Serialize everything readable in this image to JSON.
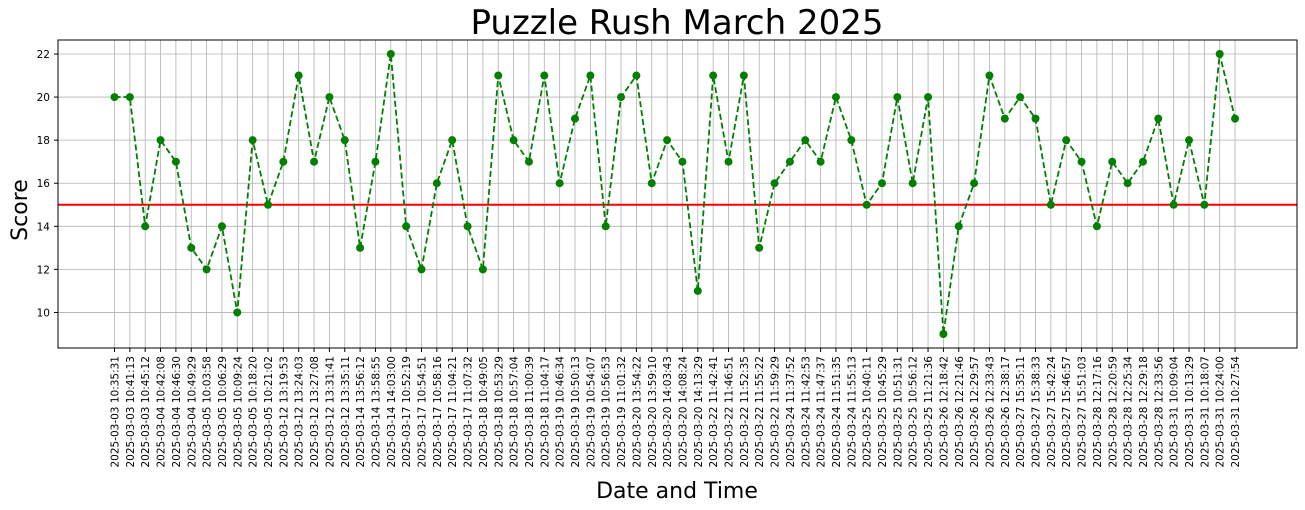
{
  "chart_data": {
    "type": "line",
    "title": "Puzzle Rush March 2025",
    "xlabel": "Date and Time",
    "ylabel": "Score",
    "ylim": [
      8.35,
      22.65
    ],
    "yticks": [
      10,
      12,
      14,
      16,
      18,
      20,
      22
    ],
    "grid": true,
    "reference_line": {
      "y": 15,
      "color": "#ff0000"
    },
    "series_color": "#007f00",
    "categories": [
      "2025-03-03 10:35:31",
      "2025-03-03 10:41:13",
      "2025-03-03 10:45:12",
      "2025-03-04 10:42:08",
      "2025-03-04 10:46:30",
      "2025-03-04 10:49:29",
      "2025-03-05 10:03:58",
      "2025-03-05 10:06:29",
      "2025-03-05 10:09:24",
      "2025-03-05 10:18:20",
      "2025-03-05 10:21:02",
      "2025-03-12 13:19:53",
      "2025-03-12 13:24:03",
      "2025-03-12 13:27:08",
      "2025-03-12 13:31:41",
      "2025-03-12 13:35:11",
      "2025-03-14 13:56:12",
      "2025-03-14 13:58:55",
      "2025-03-14 14:03:00",
      "2025-03-17 10:52:19",
      "2025-03-17 10:54:51",
      "2025-03-17 10:58:16",
      "2025-03-17 11:04:21",
      "2025-03-17 11:07:32",
      "2025-03-18 10:49:05",
      "2025-03-18 10:53:29",
      "2025-03-18 10:57:04",
      "2025-03-18 11:00:39",
      "2025-03-18 11:04:17",
      "2025-03-19 10:46:34",
      "2025-03-19 10:50:13",
      "2025-03-19 10:54:07",
      "2025-03-19 10:56:53",
      "2025-03-19 11:01:32",
      "2025-03-20 13:54:22",
      "2025-03-20 13:59:10",
      "2025-03-20 14:03:43",
      "2025-03-20 14:08:24",
      "2025-03-20 14:13:29",
      "2025-03-22 11:42:41",
      "2025-03-22 11:46:51",
      "2025-03-22 11:52:35",
      "2025-03-22 11:55:22",
      "2025-03-22 11:59:29",
      "2025-03-24 11:37:52",
      "2025-03-24 11:42:53",
      "2025-03-24 11:47:37",
      "2025-03-24 11:51:35",
      "2025-03-24 11:55:13",
      "2025-03-25 10:40:11",
      "2025-03-25 10:45:29",
      "2025-03-25 10:51:31",
      "2025-03-25 10:56:12",
      "2025-03-25 11:21:36",
      "2025-03-26 12:18:42",
      "2025-03-26 12:21:46",
      "2025-03-26 12:29:57",
      "2025-03-26 12:33:43",
      "2025-03-26 12:38:17",
      "2025-03-27 15:35:11",
      "2025-03-27 15:38:33",
      "2025-03-27 15:42:24",
      "2025-03-27 15:46:57",
      "2025-03-27 15:51:03",
      "2025-03-28 12:17:16",
      "2025-03-28 12:20:59",
      "2025-03-28 12:25:34",
      "2025-03-28 12:29:18",
      "2025-03-28 12:33:56",
      "2025-03-31 10:09:04",
      "2025-03-31 10:13:29",
      "2025-03-31 10:18:07",
      "2025-03-31 10:24:00",
      "2025-03-31 10:27:54"
    ],
    "values": [
      20,
      20,
      14,
      18,
      17,
      13,
      12,
      14,
      10,
      18,
      15,
      17,
      21,
      17,
      20,
      18,
      13,
      17,
      22,
      14,
      12,
      16,
      18,
      14,
      12,
      21,
      18,
      17,
      21,
      16,
      19,
      21,
      14,
      20,
      21,
      16,
      18,
      17,
      11,
      21,
      17,
      21,
      13,
      16,
      17,
      18,
      17,
      20,
      18,
      15,
      16,
      20,
      16,
      20,
      9,
      14,
      16,
      21,
      19,
      20,
      19,
      15,
      18,
      17,
      14,
      17,
      16,
      17,
      19,
      15,
      18,
      15,
      22,
      19
    ]
  }
}
